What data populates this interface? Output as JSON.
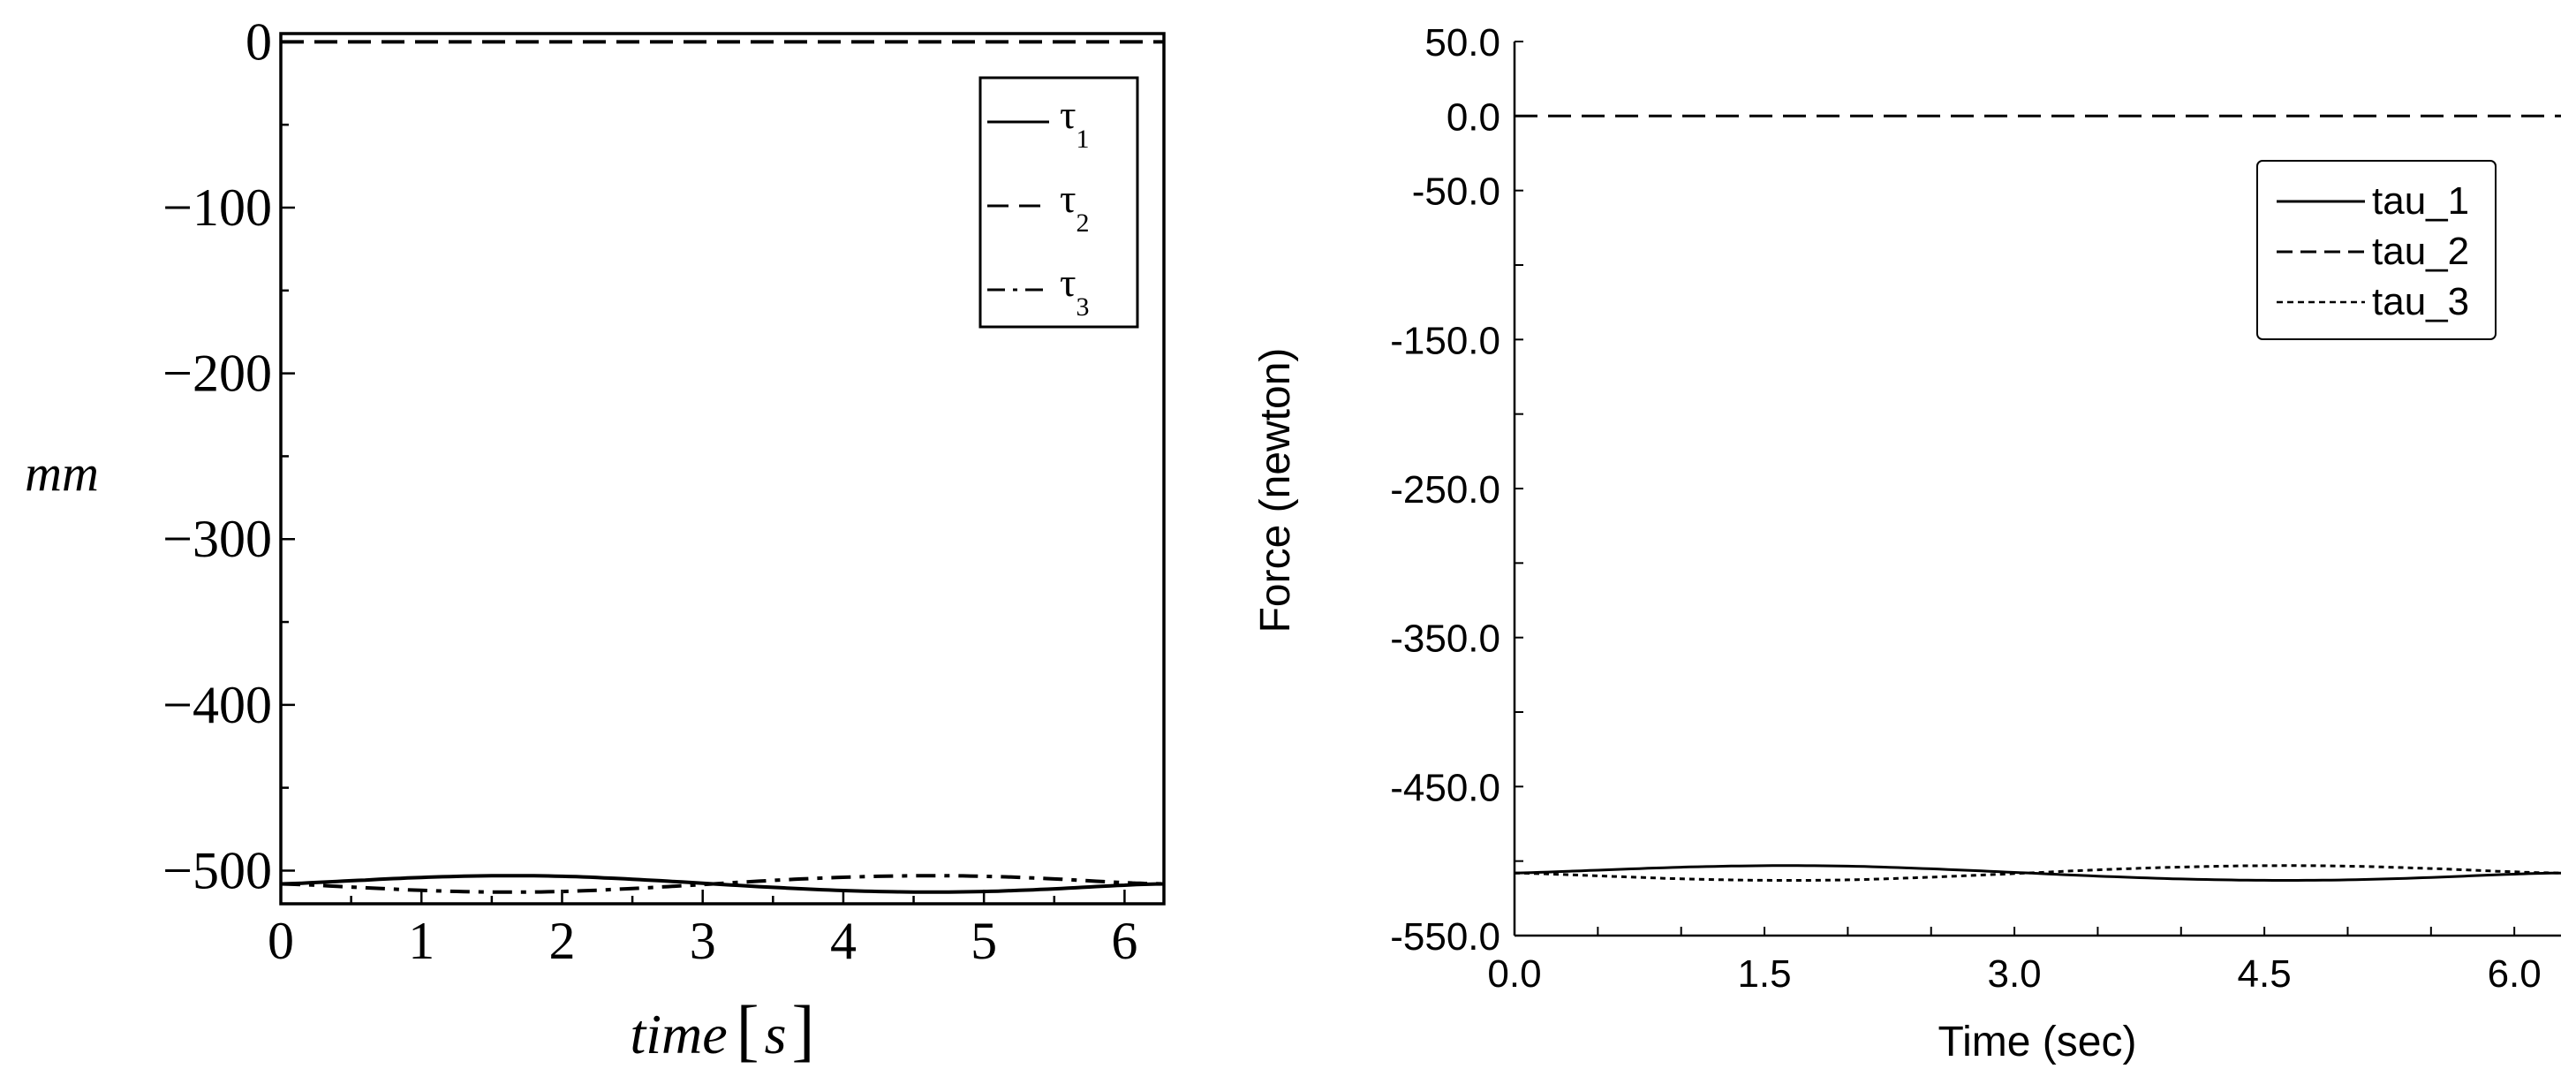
{
  "chart_data": [
    {
      "type": "line",
      "title": "",
      "xlabel_italic": "time",
      "xlabel_unit": "s",
      "ylabel": "mm",
      "xlim": [
        0,
        6.28
      ],
      "ylim": [
        -520,
        5
      ],
      "x_ticks": [
        0,
        1,
        2,
        3,
        4,
        5,
        6
      ],
      "x_tick_labels": [
        "0",
        "1",
        "2",
        "3",
        "4",
        "5",
        "6"
      ],
      "y_ticks": [
        0,
        -100,
        -200,
        -300,
        -400,
        -500
      ],
      "y_tick_labels": [
        "0",
        "−100",
        "−200",
        "−300",
        "−400",
        "−500"
      ],
      "legend_position": "top-right",
      "series": [
        {
          "name": "τ",
          "subscript": "1",
          "style": "solid",
          "color": "#000000",
          "x": [
            0,
            0.5,
            1.0,
            1.5,
            2.0,
            2.5,
            3.0,
            3.5,
            4.0,
            4.5,
            5.0,
            5.5,
            6.0,
            6.28
          ],
          "values": [
            -508,
            -506.1,
            -504.1,
            -503.1,
            -503.4,
            -505.2,
            -507.6,
            -510.1,
            -512.0,
            -512.9,
            -512.6,
            -511.0,
            -508.8,
            -508.0
          ]
        },
        {
          "name": "τ",
          "subscript": "2",
          "style": "dash",
          "color": "#000000",
          "x": [
            0,
            6.28
          ],
          "values": [
            0,
            0
          ]
        },
        {
          "name": "τ",
          "subscript": "3",
          "style": "dashdot",
          "color": "#000000",
          "x": [
            0,
            0.5,
            1.0,
            1.5,
            2.0,
            2.5,
            3.0,
            3.5,
            4.0,
            4.5,
            5.0,
            5.5,
            6.0,
            6.28
          ],
          "values": [
            -508,
            -509.9,
            -511.9,
            -512.9,
            -512.6,
            -510.8,
            -508.4,
            -505.9,
            -504.0,
            -503.1,
            -503.4,
            -505.0,
            -507.2,
            -508.0
          ]
        }
      ]
    },
    {
      "type": "line",
      "title": "",
      "xlabel": "Time (sec)",
      "ylabel": "Force (newton)",
      "xlim": [
        0,
        6.28
      ],
      "ylim": [
        -550,
        50
      ],
      "x_ticks": [
        0,
        1.5,
        3.0,
        4.5,
        6.0
      ],
      "x_tick_labels": [
        "0.0",
        "1.5",
        "3.0",
        "4.5",
        "6.0"
      ],
      "y_ticks": [
        50,
        0,
        -50,
        -150,
        -250,
        -350,
        -450,
        -550
      ],
      "y_tick_labels": [
        "50.0",
        "0.0",
        "-50.0",
        "-150.0",
        "-250.0",
        "-350.0",
        "-450.0",
        "-550.0"
      ],
      "legend_position": "top-right",
      "series": [
        {
          "name": "tau_1",
          "style": "solid",
          "color": "#000000",
          "x": [
            0,
            0.5,
            1.0,
            1.5,
            2.0,
            2.5,
            3.0,
            3.5,
            4.0,
            4.5,
            5.0,
            5.5,
            6.0,
            6.28
          ],
          "values": [
            -508,
            -506.1,
            -504.1,
            -503.1,
            -503.4,
            -505.2,
            -507.6,
            -510.1,
            -512.0,
            -512.9,
            -512.6,
            -511.0,
            -508.8,
            -508.0
          ]
        },
        {
          "name": "tau_2",
          "style": "dash",
          "color": "#000000",
          "x": [
            0,
            6.28
          ],
          "values": [
            0,
            0
          ]
        },
        {
          "name": "tau_3",
          "style": "dot",
          "color": "#000000",
          "x": [
            0,
            0.5,
            1.0,
            1.5,
            2.0,
            2.5,
            3.0,
            3.5,
            4.0,
            4.5,
            5.0,
            5.5,
            6.0,
            6.28
          ],
          "values": [
            -508,
            -509.9,
            -511.9,
            -512.9,
            -512.6,
            -510.8,
            -508.4,
            -505.9,
            -504.0,
            -503.1,
            -503.4,
            -505.0,
            -507.2,
            -508.0
          ]
        }
      ]
    }
  ]
}
